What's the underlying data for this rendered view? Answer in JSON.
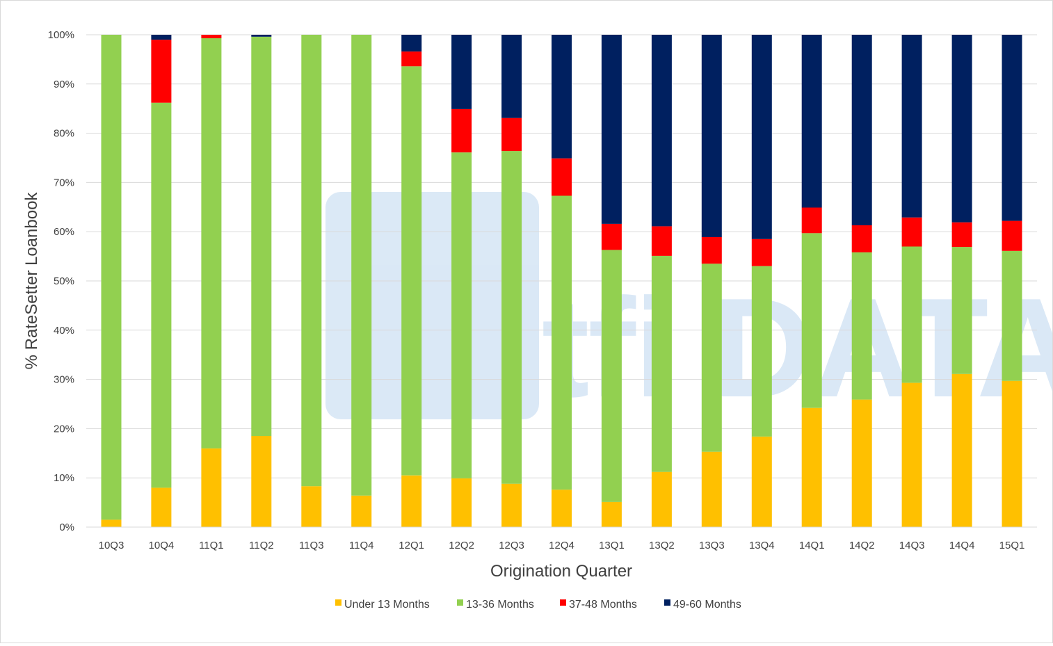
{
  "chart_data": {
    "type": "bar",
    "stacked": true,
    "percent_stacked": true,
    "title": "",
    "xlabel": "Origination Quarter",
    "ylabel": "% RateSetter Loanbook",
    "ylim": [
      0,
      100
    ],
    "yticks": [
      "0%",
      "10%",
      "20%",
      "30%",
      "40%",
      "50%",
      "60%",
      "70%",
      "80%",
      "90%",
      "100%"
    ],
    "grid": true,
    "legend_position": "bottom",
    "watermark_text": "altfi DATA",
    "categories": [
      "10Q3",
      "10Q4",
      "11Q1",
      "11Q2",
      "11Q3",
      "11Q4",
      "12Q1",
      "12Q2",
      "12Q3",
      "12Q4",
      "13Q1",
      "13Q2",
      "13Q3",
      "13Q4",
      "14Q1",
      "14Q2",
      "14Q3",
      "14Q4",
      "15Q1"
    ],
    "series": [
      {
        "name": "Under 13 Months",
        "color": "#FFC000",
        "values": [
          1.5,
          8.0,
          16.0,
          18.5,
          8.3,
          6.4,
          10.5,
          9.9,
          8.8,
          7.6,
          5.1,
          11.2,
          15.3,
          18.4,
          24.2,
          25.9,
          29.3,
          31.1,
          29.7
        ]
      },
      {
        "name": "13-36 Months",
        "color": "#92D050",
        "values": [
          98.5,
          78.2,
          83.3,
          81.1,
          91.7,
          93.6,
          83.1,
          66.2,
          67.6,
          59.7,
          51.2,
          43.9,
          38.2,
          34.6,
          35.5,
          29.9,
          27.7,
          25.8,
          26.4
        ]
      },
      {
        "name": "37-48 Months",
        "color": "#FF0000",
        "values": [
          0.0,
          12.8,
          0.7,
          0.0,
          0.0,
          0.0,
          3.0,
          8.8,
          6.7,
          7.6,
          5.3,
          6.0,
          5.4,
          5.5,
          5.2,
          5.5,
          5.9,
          5.0,
          6.1
        ]
      },
      {
        "name": "49-60 Months",
        "color": "#002060",
        "values": [
          0.0,
          1.0,
          0.0,
          0.4,
          0.0,
          0.0,
          3.4,
          15.1,
          16.9,
          25.1,
          38.4,
          38.9,
          41.1,
          41.5,
          35.1,
          38.7,
          37.1,
          38.1,
          37.8
        ]
      }
    ]
  }
}
